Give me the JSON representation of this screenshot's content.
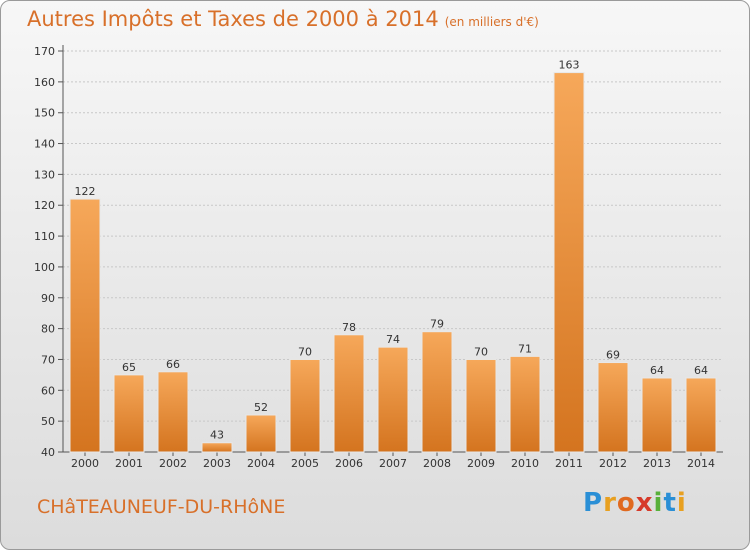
{
  "header": {
    "title": "Autres Impôts et Taxes de 2000 à 2014",
    "unit": "(en milliers d'€)"
  },
  "footer": {
    "commune": "CHâTEAUNEUF-DU-RHôNE",
    "logo_letters": [
      "P",
      "r",
      "o",
      "x",
      "i",
      "t",
      "i"
    ],
    "logo_colors": [
      "#2a8fd6",
      "#e8a020",
      "#e06a20",
      "#d63a2a",
      "#58b03a",
      "#2a8fd6",
      "#e8a020"
    ]
  },
  "colors": {
    "bar_light": "#f6a85a",
    "bar_dark": "#d4741f",
    "accent": "#d8702a"
  },
  "chart_data": {
    "type": "bar",
    "title": "Autres Impôts et Taxes de 2000 à 2014",
    "categories": [
      "2000",
      "2001",
      "2002",
      "2003",
      "2004",
      "2005",
      "2006",
      "2007",
      "2008",
      "2009",
      "2010",
      "2011",
      "2012",
      "2013",
      "2014"
    ],
    "values": [
      122,
      65,
      66,
      43,
      52,
      70,
      78,
      74,
      79,
      70,
      71,
      163,
      69,
      64,
      64
    ],
    "ylim": [
      40,
      170
    ],
    "yticks": [
      40,
      50,
      60,
      70,
      80,
      90,
      100,
      110,
      120,
      130,
      140,
      150,
      160,
      170
    ],
    "grid": true
  }
}
